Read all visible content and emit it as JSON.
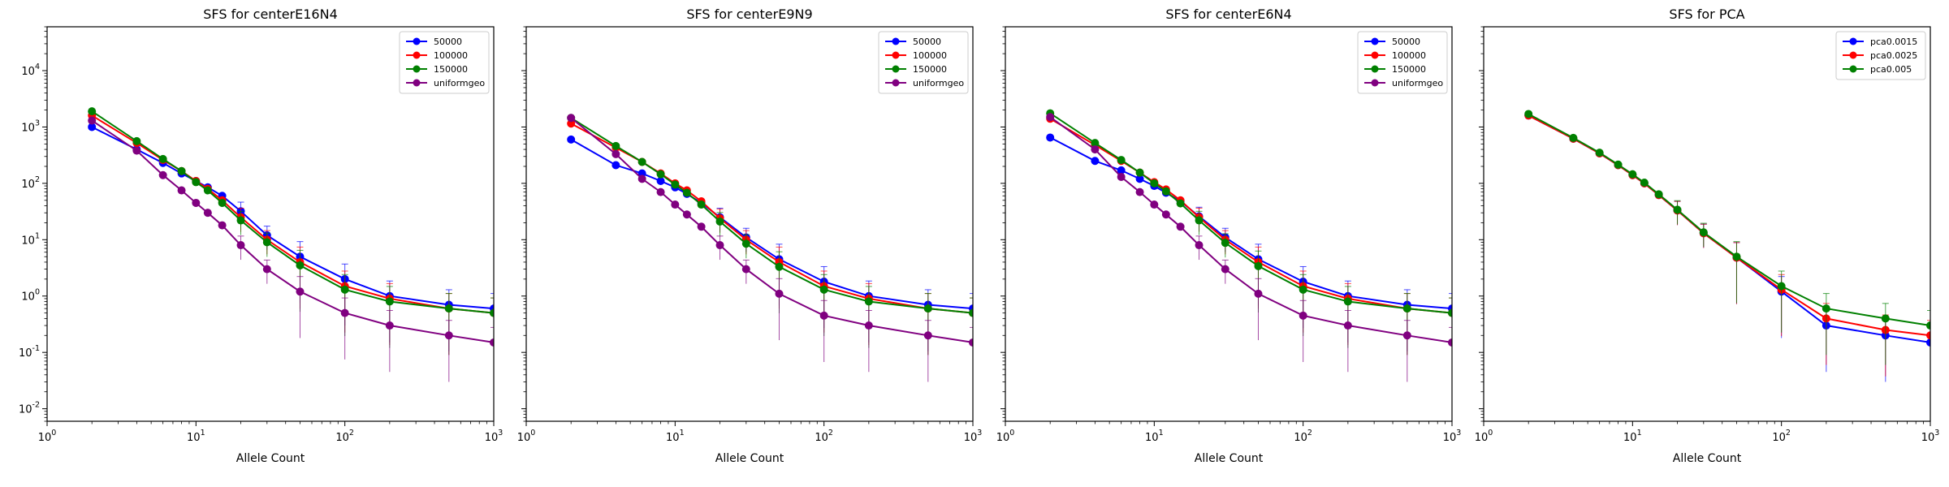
{
  "chart_data": [
    {
      "type": "line",
      "title": "SFS for centerE16N4",
      "xlabel": "Allele Count",
      "ylabel": "",
      "xscale": "log",
      "yscale": "log",
      "xlim": [
        1,
        1000
      ],
      "ylim": [
        0.006,
        60000
      ],
      "x_tick_labels": [
        "10^0",
        "10^1",
        "10^2",
        "10^3"
      ],
      "y_tick_labels": [
        "10^-2",
        "10^-1",
        "10^0",
        "10^1",
        "10^2",
        "10^3",
        "10^4"
      ],
      "show_y_tick_labels": true,
      "legend_position": "top-right",
      "grid": false,
      "series": [
        {
          "name": "50000",
          "color": "#0000ff",
          "x": [
            2,
            4,
            6,
            8,
            10,
            12,
            15,
            20,
            30,
            50,
            100,
            200,
            500,
            1000
          ],
          "y": [
            1000,
            400,
            230,
            150,
            110,
            85,
            60,
            32,
            12,
            5,
            2,
            1,
            0.7,
            0.6
          ]
        },
        {
          "name": "100000",
          "color": "#ff0000",
          "x": [
            2,
            4,
            6,
            8,
            10,
            12,
            15,
            20,
            30,
            50,
            100,
            200,
            500,
            1000
          ],
          "y": [
            1600,
            520,
            260,
            165,
            110,
            80,
            50,
            25,
            10,
            4,
            1.5,
            0.9,
            0.6,
            0.5
          ]
        },
        {
          "name": "150000",
          "color": "#008000",
          "x": [
            2,
            4,
            6,
            8,
            10,
            12,
            15,
            20,
            30,
            50,
            100,
            200,
            500,
            1000
          ],
          "y": [
            1900,
            560,
            270,
            165,
            105,
            75,
            45,
            22,
            9,
            3.5,
            1.3,
            0.8,
            0.6,
            0.5
          ]
        },
        {
          "name": "uniformgeo",
          "color": "#800080",
          "x": [
            2,
            4,
            6,
            8,
            10,
            12,
            15,
            20,
            30,
            50,
            100,
            200,
            500,
            1000
          ],
          "y": [
            1300,
            380,
            140,
            75,
            45,
            30,
            18,
            8,
            3,
            1.2,
            0.5,
            0.3,
            0.2,
            0.15
          ]
        }
      ]
    },
    {
      "type": "line",
      "title": "SFS for centerE9N9",
      "xlabel": "Allele Count",
      "ylabel": "",
      "xscale": "log",
      "yscale": "log",
      "xlim": [
        1,
        1000
      ],
      "ylim": [
        0.006,
        60000
      ],
      "x_tick_labels": [
        "10^0",
        "10^1",
        "10^2",
        "10^3"
      ],
      "y_tick_labels": [],
      "show_y_tick_labels": false,
      "legend_position": "top-right",
      "grid": false,
      "series": [
        {
          "name": "50000",
          "color": "#0000ff",
          "x": [
            2,
            4,
            6,
            8,
            10,
            12,
            15,
            20,
            30,
            50,
            100,
            200,
            500,
            1000
          ],
          "y": [
            600,
            210,
            150,
            110,
            85,
            65,
            45,
            25,
            11,
            4.5,
            1.8,
            1,
            0.7,
            0.6
          ]
        },
        {
          "name": "100000",
          "color": "#ff0000",
          "x": [
            2,
            4,
            6,
            8,
            10,
            12,
            15,
            20,
            30,
            50,
            100,
            200,
            500,
            1000
          ],
          "y": [
            1150,
            430,
            240,
            150,
            100,
            75,
            48,
            24,
            10,
            4,
            1.5,
            0.9,
            0.6,
            0.5
          ]
        },
        {
          "name": "150000",
          "color": "#008000",
          "x": [
            2,
            4,
            6,
            8,
            10,
            12,
            15,
            20,
            30,
            50,
            100,
            200,
            500,
            1000
          ],
          "y": [
            1450,
            460,
            240,
            145,
            95,
            68,
            42,
            21,
            8.5,
            3.3,
            1.3,
            0.8,
            0.6,
            0.5
          ]
        },
        {
          "name": "uniformgeo",
          "color": "#800080",
          "x": [
            2,
            4,
            6,
            8,
            10,
            12,
            15,
            20,
            30,
            50,
            100,
            200,
            500,
            1000
          ],
          "y": [
            1450,
            330,
            120,
            70,
            42,
            28,
            17,
            8,
            3,
            1.1,
            0.45,
            0.3,
            0.2,
            0.15
          ]
        }
      ]
    },
    {
      "type": "line",
      "title": "SFS for centerE6N4",
      "xlabel": "Allele Count",
      "ylabel": "",
      "xscale": "log",
      "yscale": "log",
      "xlim": [
        1,
        1000
      ],
      "ylim": [
        0.006,
        60000
      ],
      "x_tick_labels": [
        "10^0",
        "10^1",
        "10^2",
        "10^3"
      ],
      "y_tick_labels": [],
      "show_y_tick_labels": false,
      "legend_position": "top-right",
      "grid": false,
      "series": [
        {
          "name": "50000",
          "color": "#0000ff",
          "x": [
            2,
            4,
            6,
            8,
            10,
            12,
            15,
            20,
            30,
            50,
            100,
            200,
            500,
            1000
          ],
          "y": [
            650,
            250,
            170,
            120,
            90,
            68,
            48,
            26,
            11,
            4.5,
            1.8,
            1,
            0.7,
            0.6
          ]
        },
        {
          "name": "100000",
          "color": "#ff0000",
          "x": [
            2,
            4,
            6,
            8,
            10,
            12,
            15,
            20,
            30,
            50,
            100,
            200,
            500,
            1000
          ],
          "y": [
            1400,
            480,
            250,
            155,
            105,
            78,
            50,
            25,
            10,
            4,
            1.5,
            0.9,
            0.6,
            0.5
          ]
        },
        {
          "name": "150000",
          "color": "#008000",
          "x": [
            2,
            4,
            6,
            8,
            10,
            12,
            15,
            20,
            30,
            50,
            100,
            200,
            500,
            1000
          ],
          "y": [
            1750,
            520,
            260,
            155,
            100,
            72,
            44,
            22,
            8.8,
            3.4,
            1.3,
            0.8,
            0.6,
            0.5
          ]
        },
        {
          "name": "uniformgeo",
          "color": "#800080",
          "x": [
            2,
            4,
            6,
            8,
            10,
            12,
            15,
            20,
            30,
            50,
            100,
            200,
            500,
            1000
          ],
          "y": [
            1500,
            400,
            130,
            70,
            42,
            28,
            17,
            8,
            3,
            1.1,
            0.45,
            0.3,
            0.2,
            0.15
          ]
        }
      ]
    },
    {
      "type": "line",
      "title": "SFS for PCA",
      "xlabel": "Allele Count",
      "ylabel": "",
      "xscale": "log",
      "yscale": "log",
      "xlim": [
        1,
        1000
      ],
      "ylim": [
        0.006,
        60000
      ],
      "x_tick_labels": [
        "10^0",
        "10^1",
        "10^2",
        "10^3"
      ],
      "y_tick_labels": [],
      "show_y_tick_labels": false,
      "legend_position": "top-right",
      "grid": false,
      "series": [
        {
          "name": "pca0.0015",
          "color": "#0000ff",
          "x": [
            2,
            4,
            6,
            8,
            10,
            12,
            15,
            20,
            30,
            50,
            100,
            200,
            500,
            1000
          ],
          "y": [
            1600,
            620,
            340,
            210,
            140,
            100,
            62,
            33,
            13,
            4.8,
            1.2,
            0.3,
            0.2,
            0.15
          ]
        },
        {
          "name": "pca0.0025",
          "color": "#ff0000",
          "x": [
            2,
            4,
            6,
            8,
            10,
            12,
            15,
            20,
            30,
            50,
            100,
            200,
            500,
            1000
          ],
          "y": [
            1600,
            620,
            340,
            210,
            140,
            100,
            62,
            33,
            13,
            4.8,
            1.3,
            0.4,
            0.25,
            0.2
          ]
        },
        {
          "name": "pca0.005",
          "color": "#008000",
          "x": [
            2,
            4,
            6,
            8,
            10,
            12,
            15,
            20,
            30,
            50,
            100,
            200,
            500,
            1000
          ],
          "y": [
            1700,
            640,
            350,
            215,
            145,
            103,
            64,
            34,
            13.5,
            5,
            1.5,
            0.6,
            0.4,
            0.3
          ]
        }
      ]
    }
  ]
}
